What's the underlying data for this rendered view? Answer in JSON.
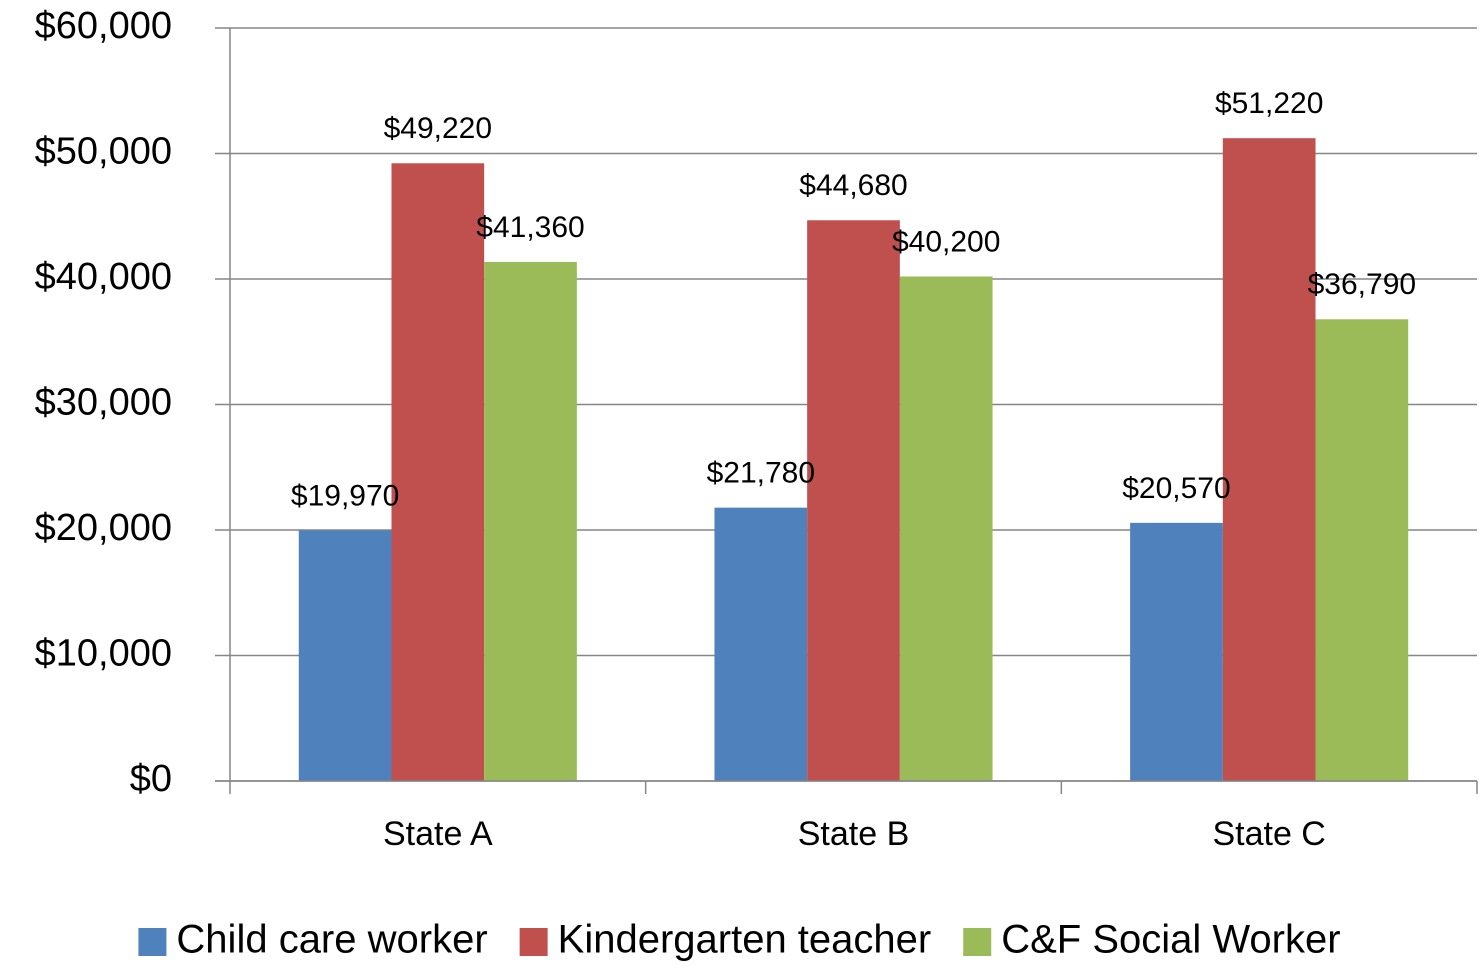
{
  "chart_data": {
    "type": "bar",
    "categories": [
      "State A",
      "State B",
      "State C"
    ],
    "series": [
      {
        "name": "Child care worker",
        "color": "#4f81bd",
        "values": [
          19970,
          21780,
          20570
        ],
        "value_labels": [
          "$19,970",
          "$21,780",
          "$20,570"
        ]
      },
      {
        "name": "Kindergarten teacher",
        "color": "#c0504d",
        "values": [
          49220,
          44680,
          51220
        ],
        "value_labels": [
          "$49,220",
          "$44,680",
          "$51,220"
        ]
      },
      {
        "name": "C&F Social Worker",
        "color": "#9bbb59",
        "values": [
          41360,
          40200,
          36790
        ],
        "value_labels": [
          "$41,360",
          "$40,200",
          "$36,790"
        ]
      }
    ],
    "ylim": [
      0,
      60000
    ],
    "yticks": [
      {
        "value": 0,
        "label": "$0"
      },
      {
        "value": 10000,
        "label": "$10,000"
      },
      {
        "value": 20000,
        "label": "$20,000"
      },
      {
        "value": 30000,
        "label": "$30,000"
      },
      {
        "value": 40000,
        "label": "$40,000"
      },
      {
        "value": 50000,
        "label": "$50,000"
      },
      {
        "value": 60000,
        "label": "$60,000"
      }
    ],
    "grid": true,
    "legend": "bottom"
  }
}
